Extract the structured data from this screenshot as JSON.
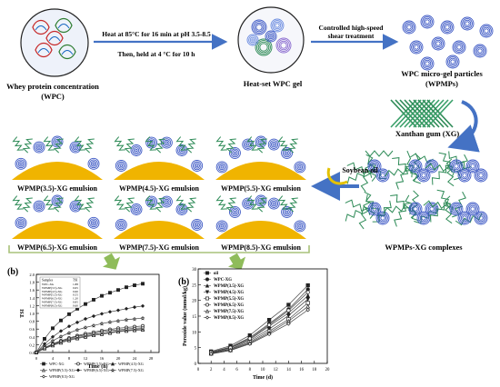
{
  "workflow": {
    "wpc_label_1": "Whey protein concentration",
    "wpc_label_2": "(WPC)",
    "heat_step_1": "Heat at 85°C for 16 min at pH 3.5-8.5",
    "heat_step_2": "Then, held at 4 °C for 10 h",
    "gel_label": "Heat-set WPC gel",
    "shear_label_1": "Controlled high-speed",
    "shear_label_2": "shear treatment",
    "particles_label_1": "WPC micro-gel particles",
    "particles_label_2": "(WPMPs)",
    "xg_label": "Xanthan gum (XG)",
    "oil_label": "Soybean oil",
    "complexes_label": "WPMPs-XG complexes"
  },
  "emulsions": [
    {
      "label": "WPMP(3.5)-XG emulsion"
    },
    {
      "label": "WPMP(4.5)-XG emulsion"
    },
    {
      "label": "WPMP(5.5)-XG emulsion"
    },
    {
      "label": "WPMP(6.5)-XG emulsion"
    },
    {
      "label": "WPMP(7.5)-XG emulsion"
    },
    {
      "label": "WPMP(8.5)-XG emulsion"
    }
  ],
  "panel_a": {
    "tag": "(b)"
  },
  "panel_b": {
    "tag": "(b)"
  },
  "colors": {
    "blue_arrow": "#4472c4",
    "green_arrow": "#8fbc5a",
    "oil": "#f0b400",
    "protein": "#3b57c4",
    "xg": "#2e8b57",
    "bracket": "#a9c27a"
  },
  "chart_data": [
    {
      "type": "line",
      "title": "",
      "xlabel": "Time (h)",
      "ylabel": "TSI",
      "xlim": [
        0,
        30
      ],
      "ylim": [
        0,
        2.0
      ],
      "xticks": [
        0,
        4,
        8,
        12,
        16,
        20,
        24,
        28
      ],
      "yticks": [
        0.0,
        0.2,
        0.4,
        0.6,
        0.8,
        1.0,
        1.2,
        1.4,
        1.6,
        1.8,
        2.0
      ],
      "x": [
        0,
        2,
        4,
        6,
        8,
        10,
        12,
        14,
        16,
        18,
        20,
        22,
        24,
        26
      ],
      "inset_table": {
        "headers": [
          "Samples",
          "TSI"
        ],
        "rows": [
          [
            "WPC-XG",
            "1.88"
          ],
          [
            "WPMP(3.5)-XG",
            "0.65"
          ],
          [
            "WPMP(4.5)-XG",
            "0.60"
          ],
          [
            "WPMP(5.5)-XG",
            "0.55"
          ],
          [
            "WPMP(6.5)-XG",
            "1.20"
          ],
          [
            "WPMP(7.5)-XG",
            "0.85"
          ],
          [
            "WPMP(8.5)-XG",
            "0.60"
          ]
        ]
      },
      "series": [
        {
          "name": "WPC-XG",
          "marker": "square-filled",
          "values": [
            0,
            0.35,
            0.62,
            0.82,
            0.98,
            1.12,
            1.24,
            1.35,
            1.45,
            1.53,
            1.6,
            1.67,
            1.72,
            1.76
          ]
        },
        {
          "name": "WPMP(3.5)-XG",
          "marker": "circle-open",
          "values": [
            0,
            0.12,
            0.22,
            0.3,
            0.37,
            0.43,
            0.48,
            0.52,
            0.56,
            0.59,
            0.62,
            0.64,
            0.66,
            0.68
          ]
        },
        {
          "name": "WPMP(4.5)-XG",
          "marker": "triangle-filled",
          "values": [
            0,
            0.11,
            0.2,
            0.27,
            0.33,
            0.38,
            0.42,
            0.46,
            0.49,
            0.52,
            0.55,
            0.57,
            0.59,
            0.61
          ]
        },
        {
          "name": "WPMP(5.5)-XG",
          "marker": "triangle-open",
          "values": [
            0,
            0.1,
            0.18,
            0.25,
            0.31,
            0.36,
            0.4,
            0.44,
            0.47,
            0.5,
            0.53,
            0.55,
            0.57,
            0.58
          ]
        },
        {
          "name": "WPMP(6.5)-XG",
          "marker": "diamond-filled",
          "values": [
            0,
            0.22,
            0.4,
            0.55,
            0.67,
            0.77,
            0.86,
            0.93,
            0.99,
            1.04,
            1.08,
            1.12,
            1.16,
            1.19
          ]
        },
        {
          "name": "WPMP(7.5)-XG",
          "marker": "star-open",
          "values": [
            0,
            0.16,
            0.3,
            0.41,
            0.5,
            0.58,
            0.64,
            0.69,
            0.74,
            0.78,
            0.81,
            0.84,
            0.86,
            0.88
          ]
        },
        {
          "name": "WPMP(8.5)-XG",
          "marker": "diamond-open",
          "values": [
            0,
            0.12,
            0.21,
            0.29,
            0.35,
            0.41,
            0.45,
            0.49,
            0.53,
            0.56,
            0.58,
            0.6,
            0.62,
            0.63
          ]
        }
      ]
    },
    {
      "type": "line",
      "title": "",
      "xlabel": "Time (d)",
      "ylabel": "Peroxide value (mmol/kg)",
      "xlim": [
        0,
        20
      ],
      "ylim": [
        0,
        30
      ],
      "xticks": [
        0,
        2,
        4,
        6,
        8,
        10,
        12,
        14,
        16,
        18,
        20
      ],
      "yticks": [
        0,
        5,
        10,
        15,
        20,
        25,
        30
      ],
      "x": [
        2,
        5,
        8,
        11,
        14,
        17
      ],
      "legend": "top-left",
      "series": [
        {
          "name": "oil",
          "marker": "square-filled",
          "values": [
            3.8,
            5.6,
            8.9,
            13.8,
            18.6,
            24.8
          ]
        },
        {
          "name": "WPC-XG",
          "marker": "circle-filled",
          "values": [
            3.6,
            5.2,
            8.2,
            12.6,
            17.2,
            23.5
          ]
        },
        {
          "name": "WPMP(3.5)-XG",
          "marker": "triangle-filled",
          "values": [
            3.4,
            4.9,
            7.6,
            11.8,
            16.0,
            21.5
          ]
        },
        {
          "name": "WPMP(4.5)-XG",
          "marker": "triangle-down-filled",
          "values": [
            3.3,
            4.6,
            7.2,
            10.9,
            15.2,
            20.4
          ]
        },
        {
          "name": "WPMP(5.5)-XG",
          "marker": "square-open",
          "values": [
            3.2,
            4.4,
            6.8,
            10.2,
            14.0,
            19.2
          ]
        },
        {
          "name": "WPMP(6.5)-XG",
          "marker": "circle-open",
          "values": [
            3.5,
            5.0,
            7.9,
            12.2,
            16.8,
            22.6
          ]
        },
        {
          "name": "WPMP(7.5)-XG",
          "marker": "triangle-open",
          "values": [
            3.1,
            4.2,
            6.5,
            9.7,
            13.4,
            18.1
          ]
        },
        {
          "name": "WPMP(8.5)-XG",
          "marker": "diamond-open",
          "values": [
            3.0,
            4.1,
            6.2,
            9.3,
            12.6,
            17.0
          ]
        }
      ]
    }
  ]
}
